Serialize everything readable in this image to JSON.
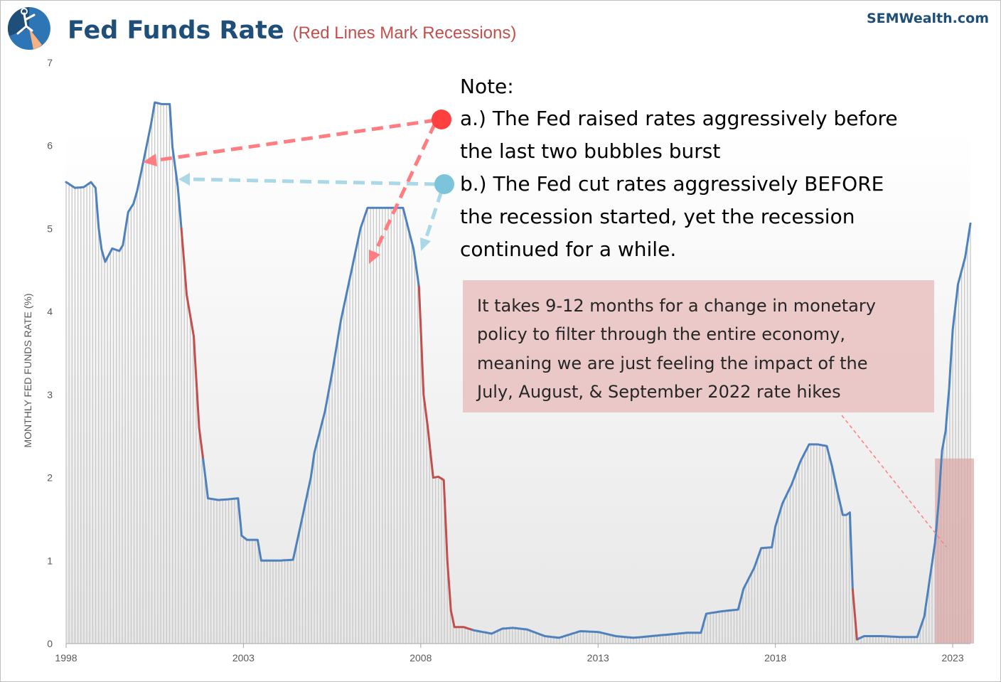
{
  "header": {
    "title": "Fed Funds Rate",
    "subtitle": "(Red Lines Mark Recessions)",
    "brand": "SEMWealth.com",
    "logo_colors": [
      "#2e75b6",
      "#1f4e79",
      "#f4b183"
    ]
  },
  "note": {
    "lines": [
      "Note:",
      "a.) The Fed raised rates aggressively before",
      "the last two bubbles burst",
      "b.) The Fed cut rates aggressively BEFORE",
      "the recession started, yet the recession",
      "continued for a while."
    ]
  },
  "callout": {
    "lines": [
      "It takes 9-12 months for a change in monetary",
      "policy to filter through the entire economy,",
      "meaning we are just feeling the impact of the",
      "July, August, & September 2022 rate hikes"
    ]
  },
  "colors": {
    "line": "#4f81bd",
    "recession": "#c0504d",
    "bars": "#c8c8c8",
    "arrow_a": "#ff7c80",
    "arrow_b": "#a9d8e6",
    "dot_a": "#ff4040",
    "dot_b": "#7bc4d9",
    "callout_bg": "#e6b9b8",
    "highlight": "#d9a5a4",
    "title": "#1f4e79",
    "subtitle": "#c0504d"
  },
  "chart_data": {
    "type": "line",
    "title": "Fed Funds Rate",
    "subtitle": "(Red Lines Mark Recessions)",
    "ylabel": "MONTHLY FED FUNDS RATE (%)",
    "xlabel": "",
    "xlim": [
      1998.0,
      2023.5
    ],
    "ylim": [
      0,
      7
    ],
    "x_ticks": [
      "1998",
      "2003",
      "2008",
      "2013",
      "2018",
      "2023"
    ],
    "y_ticks": [
      "0",
      "1",
      "2",
      "3",
      "4",
      "5",
      "6",
      "7"
    ],
    "grid": false,
    "series": [
      {
        "points": [
          [
            1998.0,
            5.56
          ],
          [
            1998.25,
            5.49
          ],
          [
            1998.5,
            5.5
          ],
          [
            1998.7,
            5.56
          ],
          [
            1998.83,
            5.49
          ],
          [
            1998.92,
            5.0
          ],
          [
            1999.0,
            4.75
          ],
          [
            1999.1,
            4.6
          ],
          [
            1999.3,
            4.76
          ],
          [
            1999.5,
            4.73
          ],
          [
            1999.6,
            4.8
          ],
          [
            1999.75,
            5.2
          ],
          [
            1999.9,
            5.3
          ],
          [
            2000.0,
            5.45
          ],
          [
            2000.2,
            5.85
          ],
          [
            2000.4,
            6.27
          ],
          [
            2000.5,
            6.52
          ],
          [
            2000.7,
            6.5
          ],
          [
            2000.92,
            6.5
          ],
          [
            2001.0,
            5.98
          ],
          [
            2001.15,
            5.5
          ],
          [
            2001.25,
            5.0
          ],
          [
            2001.4,
            4.2
          ],
          [
            2001.6,
            3.7
          ],
          [
            2001.75,
            2.6
          ],
          [
            2001.9,
            2.1
          ],
          [
            2002.0,
            1.75
          ],
          [
            2002.3,
            1.73
          ],
          [
            2002.6,
            1.74
          ],
          [
            2002.85,
            1.75
          ],
          [
            2002.95,
            1.3
          ],
          [
            2003.1,
            1.25
          ],
          [
            2003.4,
            1.25
          ],
          [
            2003.5,
            1.0
          ],
          [
            2003.8,
            1.0
          ],
          [
            2004.0,
            1.0
          ],
          [
            2004.4,
            1.01
          ],
          [
            2004.6,
            1.4
          ],
          [
            2004.9,
            2.0
          ],
          [
            2005.0,
            2.3
          ],
          [
            2005.3,
            2.8
          ],
          [
            2005.5,
            3.26
          ],
          [
            2005.75,
            3.9
          ],
          [
            2005.95,
            4.3
          ],
          [
            2006.1,
            4.6
          ],
          [
            2006.3,
            5.0
          ],
          [
            2006.5,
            5.25
          ],
          [
            2006.75,
            5.25
          ],
          [
            2007.0,
            5.25
          ],
          [
            2007.5,
            5.25
          ],
          [
            2007.65,
            5.0
          ],
          [
            2007.8,
            4.75
          ],
          [
            2007.95,
            4.3
          ],
          [
            2008.08,
            3.0
          ],
          [
            2008.2,
            2.6
          ],
          [
            2008.35,
            2.0
          ],
          [
            2008.5,
            2.01
          ],
          [
            2008.65,
            1.97
          ],
          [
            2008.75,
            1.0
          ],
          [
            2008.85,
            0.4
          ],
          [
            2008.95,
            0.2
          ],
          [
            2009.2,
            0.2
          ],
          [
            2009.5,
            0.16
          ],
          [
            2009.75,
            0.14
          ],
          [
            2010.0,
            0.12
          ],
          [
            2010.3,
            0.18
          ],
          [
            2010.6,
            0.19
          ],
          [
            2011.0,
            0.17
          ],
          [
            2011.5,
            0.09
          ],
          [
            2011.9,
            0.07
          ],
          [
            2012.5,
            0.15
          ],
          [
            2013.0,
            0.14
          ],
          [
            2013.5,
            0.09
          ],
          [
            2014.0,
            0.07
          ],
          [
            2014.5,
            0.09
          ],
          [
            2015.0,
            0.11
          ],
          [
            2015.5,
            0.13
          ],
          [
            2015.9,
            0.13
          ],
          [
            2016.05,
            0.36
          ],
          [
            2016.5,
            0.39
          ],
          [
            2016.95,
            0.41
          ],
          [
            2017.1,
            0.66
          ],
          [
            2017.4,
            0.91
          ],
          [
            2017.6,
            1.15
          ],
          [
            2017.9,
            1.16
          ],
          [
            2018.0,
            1.41
          ],
          [
            2018.2,
            1.69
          ],
          [
            2018.45,
            1.91
          ],
          [
            2018.7,
            2.19
          ],
          [
            2018.95,
            2.4
          ],
          [
            2019.2,
            2.4
          ],
          [
            2019.45,
            2.38
          ],
          [
            2019.6,
            2.13
          ],
          [
            2019.75,
            1.83
          ],
          [
            2019.9,
            1.55
          ],
          [
            2020.0,
            1.55
          ],
          [
            2020.1,
            1.58
          ],
          [
            2020.18,
            0.65
          ],
          [
            2020.3,
            0.05
          ],
          [
            2020.5,
            0.09
          ],
          [
            2020.8,
            0.09
          ],
          [
            2021.0,
            0.09
          ],
          [
            2021.5,
            0.08
          ],
          [
            2021.9,
            0.08
          ],
          [
            2022.0,
            0.08
          ],
          [
            2022.2,
            0.33
          ],
          [
            2022.35,
            0.77
          ],
          [
            2022.5,
            1.21
          ],
          [
            2022.6,
            1.68
          ],
          [
            2022.7,
            2.33
          ],
          [
            2022.8,
            2.56
          ],
          [
            2022.9,
            3.08
          ],
          [
            2023.0,
            3.78
          ],
          [
            2023.15,
            4.33
          ],
          [
            2023.35,
            4.65
          ],
          [
            2023.5,
            5.06
          ]
        ]
      }
    ],
    "recession_periods": [
      [
        2001.25,
        2001.85
      ],
      [
        2007.95,
        2009.45
      ],
      [
        2020.15,
        2020.3
      ]
    ],
    "highlight_period": [
      2022.5,
      2023.6
    ],
    "highlight_level": 2.23
  }
}
